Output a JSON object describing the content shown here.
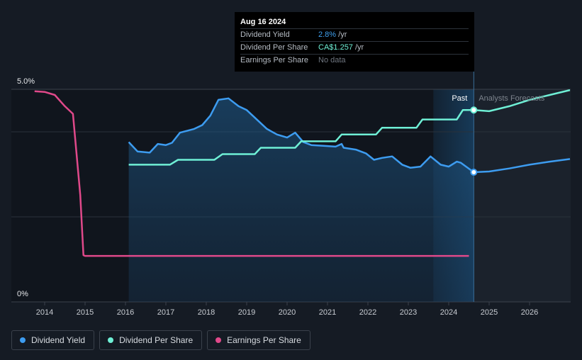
{
  "chart_data": {
    "type": "line",
    "y_axis": {
      "ticks": [
        "5.0%",
        "0%"
      ],
      "ylim": [
        0,
        5
      ]
    },
    "x_axis": {
      "ticks": [
        "2014",
        "2015",
        "2016",
        "2017",
        "2018",
        "2019",
        "2020",
        "2021",
        "2022",
        "2023",
        "2024",
        "2025",
        "2026"
      ],
      "xlim": [
        2013.0,
        2027.0
      ]
    },
    "grid": true,
    "regions": {
      "past_label": "Past",
      "forecast_label": "Analysts Forecasts",
      "divider_x": 2024.62
    },
    "series": [
      {
        "name": "Dividend Yield",
        "color": "#3d9cf0",
        "filled": true,
        "values_past": [
          [
            2016.08,
            3.6
          ],
          [
            2016.3,
            3.35
          ],
          [
            2016.6,
            3.32
          ],
          [
            2016.8,
            3.55
          ],
          [
            2017.0,
            3.52
          ],
          [
            2017.15,
            3.58
          ],
          [
            2017.35,
            3.85
          ],
          [
            2017.7,
            3.95
          ],
          [
            2017.9,
            4.05
          ],
          [
            2018.1,
            4.3
          ],
          [
            2018.3,
            4.72
          ],
          [
            2018.55,
            4.76
          ],
          [
            2018.8,
            4.55
          ],
          [
            2019.0,
            4.45
          ],
          [
            2019.2,
            4.25
          ],
          [
            2019.5,
            3.95
          ],
          [
            2019.75,
            3.8
          ],
          [
            2020.0,
            3.72
          ],
          [
            2020.2,
            3.85
          ],
          [
            2020.4,
            3.6
          ],
          [
            2020.6,
            3.52
          ],
          [
            2020.9,
            3.5
          ],
          [
            2021.2,
            3.48
          ],
          [
            2021.35,
            3.55
          ],
          [
            2021.4,
            3.45
          ],
          [
            2021.7,
            3.4
          ],
          [
            2021.95,
            3.3
          ],
          [
            2022.15,
            3.13
          ],
          [
            2022.35,
            3.18
          ],
          [
            2022.6,
            3.22
          ],
          [
            2022.85,
            3.0
          ],
          [
            2023.05,
            2.92
          ],
          [
            2023.3,
            2.95
          ],
          [
            2023.55,
            3.22
          ],
          [
            2023.8,
            3.0
          ],
          [
            2024.0,
            2.95
          ],
          [
            2024.2,
            3.08
          ],
          [
            2024.3,
            3.05
          ],
          [
            2024.62,
            2.8
          ]
        ],
        "values_forecast": [
          [
            2024.62,
            2.8
          ],
          [
            2025.0,
            2.82
          ],
          [
            2025.5,
            2.9
          ],
          [
            2026.0,
            3.0
          ],
          [
            2026.5,
            3.08
          ],
          [
            2027.0,
            3.15
          ]
        ]
      },
      {
        "name": "Dividend Per Share",
        "color": "#6ff0d6",
        "values_past": [
          [
            2016.08,
            3.0
          ],
          [
            2017.1,
            3.0
          ],
          [
            2017.3,
            3.13
          ],
          [
            2018.2,
            3.13
          ],
          [
            2018.4,
            3.28
          ],
          [
            2019.2,
            3.28
          ],
          [
            2019.35,
            3.45
          ],
          [
            2020.2,
            3.45
          ],
          [
            2020.35,
            3.62
          ],
          [
            2021.2,
            3.62
          ],
          [
            2021.35,
            3.8
          ],
          [
            2022.2,
            3.8
          ],
          [
            2022.35,
            3.98
          ],
          [
            2023.2,
            3.98
          ],
          [
            2023.35,
            4.2
          ],
          [
            2024.2,
            4.2
          ],
          [
            2024.35,
            4.45
          ],
          [
            2024.62,
            4.45
          ]
        ],
        "values_forecast": [
          [
            2024.62,
            4.45
          ],
          [
            2025.0,
            4.42
          ],
          [
            2025.5,
            4.55
          ],
          [
            2026.0,
            4.72
          ],
          [
            2026.5,
            4.85
          ],
          [
            2027.0,
            4.98
          ]
        ]
      },
      {
        "name": "Earnings Per Share",
        "color": "#e0498a",
        "values_past": [
          [
            2013.75,
            4.95
          ],
          [
            2014.0,
            4.93
          ],
          [
            2014.25,
            4.85
          ],
          [
            2014.5,
            4.55
          ],
          [
            2014.7,
            4.35
          ],
          [
            2014.88,
            2.2
          ],
          [
            2014.96,
            0.6
          ],
          [
            2015.0,
            0.58
          ],
          [
            2016.0,
            0.58
          ],
          [
            2024.5,
            0.58
          ]
        ],
        "values_forecast": []
      }
    ]
  },
  "tooltip": {
    "date": "Aug 16 2024",
    "rows": [
      {
        "label": "Dividend Yield",
        "value": "2.8%",
        "unit": " /yr"
      },
      {
        "label": "Dividend Per Share",
        "value": "CA$1.257",
        "unit": " /yr"
      },
      {
        "label": "Earnings Per Share",
        "value": "No data",
        "unit": ""
      }
    ]
  },
  "legend": {
    "items": [
      {
        "label": "Dividend Yield",
        "color": "#3d9cf0"
      },
      {
        "label": "Dividend Per Share",
        "color": "#6ff0d6"
      },
      {
        "label": "Earnings Per Share",
        "color": "#e0498a"
      }
    ]
  }
}
